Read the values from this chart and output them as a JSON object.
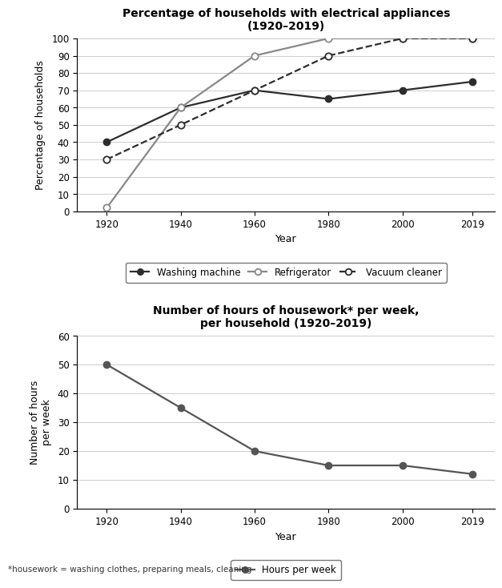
{
  "years": [
    1920,
    1940,
    1960,
    1980,
    2000,
    2019
  ],
  "washing_machine": [
    40,
    60,
    70,
    65,
    70,
    75
  ],
  "refrigerator": [
    2,
    60,
    90,
    100,
    100,
    100
  ],
  "vacuum_cleaner": [
    30,
    50,
    70,
    90,
    100,
    100
  ],
  "hours_per_week": [
    50,
    35,
    20,
    15,
    15,
    12
  ],
  "title1": "Percentage of households with electrical appliances\n(1920–2019)",
  "title2": "Number of hours of housework* per week,\nper household (1920–2019)",
  "ylabel1": "Percentage of households",
  "ylabel2": "Number of hours\nper week",
  "xlabel": "Year",
  "ylim1": [
    0,
    100
  ],
  "ylim2": [
    0,
    60
  ],
  "yticks1": [
    0,
    10,
    20,
    30,
    40,
    50,
    60,
    70,
    80,
    90,
    100
  ],
  "yticks2": [
    0,
    10,
    20,
    30,
    40,
    50,
    60
  ],
  "footnote": "*housework = washing clothes, preparing meals, cleaning",
  "legend1": [
    "Washing machine",
    "Refrigerator",
    "Vacuum cleaner"
  ],
  "legend2": [
    "Hours per week"
  ],
  "line_color_wm": "#2d2d2d",
  "line_color_ref": "#888888",
  "line_color_vc": "#2d2d2d",
  "line_color_hw": "#555555",
  "bg_color": "#ffffff",
  "grid_color": "#cccccc"
}
